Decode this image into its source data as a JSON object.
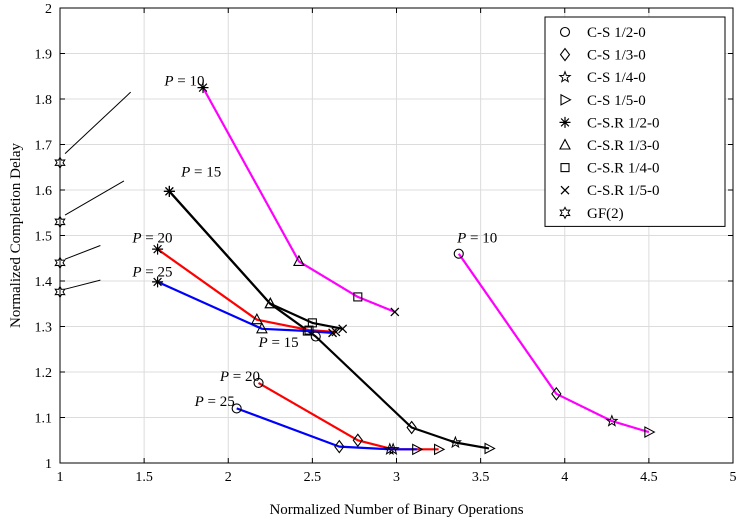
{
  "chart_data": {
    "type": "line",
    "title": "",
    "xlabel": "Normalized Number of Binary Operations",
    "ylabel": "Normalized Completion Delay",
    "xlim": [
      1,
      5
    ],
    "ylim": [
      1,
      2
    ],
    "xticks": [
      "1",
      "1.5",
      "2",
      "2.5",
      "3",
      "3.5",
      "4",
      "4.5",
      "5"
    ],
    "yticks": [
      "1",
      "1.1",
      "1.2",
      "1.3",
      "1.4",
      "1.5",
      "1.6",
      "1.7",
      "1.8",
      "1.9",
      "2"
    ],
    "grid": true,
    "legend_position": "top-right",
    "legend": [
      {
        "label": "C-S 1/2-0",
        "marker": "circle"
      },
      {
        "label": "C-S 1/3-0",
        "marker": "diamond"
      },
      {
        "label": "C-S 1/4-0",
        "marker": "star"
      },
      {
        "label": "C-S 1/5-0",
        "marker": "triangle-right"
      },
      {
        "label": "C-S.R 1/2-0",
        "marker": "asterisk"
      },
      {
        "label": "C-S.R 1/3-0",
        "marker": "triangle-up"
      },
      {
        "label": "C-S.R 1/4-0",
        "marker": "square"
      },
      {
        "label": "C-S.R 1/5-0",
        "marker": "x"
      },
      {
        "label": "GF(2)",
        "marker": "hexagram"
      }
    ],
    "series": [
      {
        "color": "#ff00ff",
        "points": [
          [
            3.37,
            1.46,
            "circle"
          ],
          [
            3.95,
            1.152,
            "diamond"
          ],
          [
            4.28,
            1.092,
            "star"
          ],
          [
            4.5,
            1.068,
            "triangle-right"
          ]
        ]
      },
      {
        "color": "#000000",
        "points": [
          [
            1.65,
            1.597,
            "asterisk"
          ],
          [
            2.25,
            1.35,
            "triangle-up"
          ],
          [
            2.52,
            1.278,
            "circle"
          ],
          [
            3.09,
            1.078,
            "diamond"
          ],
          [
            3.35,
            1.045,
            "star"
          ],
          [
            3.55,
            1.032,
            "triangle-right"
          ]
        ]
      },
      {
        "color": "#ff0000",
        "points": [
          [
            2.18,
            1.176,
            "circle"
          ],
          [
            2.77,
            1.05,
            "diamond"
          ],
          [
            2.98,
            1.03,
            "star"
          ],
          [
            3.25,
            1.03,
            "triangle-right"
          ]
        ]
      },
      {
        "color": "#0000ff",
        "points": [
          [
            2.05,
            1.12,
            "circle"
          ],
          [
            2.66,
            1.036,
            "diamond"
          ],
          [
            2.96,
            1.03,
            "star"
          ],
          [
            3.12,
            1.03,
            "triangle-right"
          ]
        ]
      },
      {
        "color": "#ff00ff",
        "points": [
          [
            1.85,
            1.825,
            "asterisk"
          ],
          [
            2.42,
            1.443,
            "triangle-up"
          ],
          [
            2.77,
            1.365,
            "square"
          ],
          [
            2.99,
            1.332,
            "x"
          ]
        ]
      },
      {
        "color": "#000000",
        "points": [
          [
            1.65,
            1.597,
            "asterisk"
          ],
          [
            2.25,
            1.35,
            "triangle-up"
          ],
          [
            2.5,
            1.308,
            "square"
          ],
          [
            2.68,
            1.295,
            "x"
          ]
        ]
      },
      {
        "color": "#ff0000",
        "points": [
          [
            1.58,
            1.47,
            "asterisk"
          ],
          [
            2.17,
            1.315,
            "triangle-up"
          ],
          [
            2.48,
            1.292,
            "square"
          ],
          [
            2.64,
            1.288,
            "x"
          ]
        ]
      },
      {
        "color": "#0000ff",
        "points": [
          [
            1.58,
            1.398,
            "asterisk"
          ],
          [
            2.2,
            1.295,
            "triangle-up"
          ],
          [
            2.47,
            1.29,
            "square"
          ],
          [
            2.62,
            1.286,
            "x"
          ]
        ]
      }
    ],
    "gf2_points": [
      [
        1.0,
        1.66
      ],
      [
        1.0,
        1.53
      ],
      [
        1.0,
        1.44
      ],
      [
        1.0,
        1.376
      ]
    ],
    "annotations": [
      {
        "p": "P",
        "value": "= 10",
        "x": 3.36,
        "y": 1.485
      },
      {
        "p": "P",
        "value": "= 15",
        "x": 2.18,
        "y": 1.255
      },
      {
        "p": "P",
        "value": "= 20",
        "x": 1.95,
        "y": 1.18
      },
      {
        "p": "P",
        "value": "= 25",
        "x": 1.8,
        "y": 1.125
      },
      {
        "p": "P",
        "value": "= 10",
        "x": 1.62,
        "y": 1.83
      },
      {
        "p": "P",
        "value": "= 15",
        "x": 1.72,
        "y": 1.63
      },
      {
        "p": "P",
        "value": "= 20",
        "x": 1.43,
        "y": 1.485
      },
      {
        "p": "P",
        "value": "= 25",
        "x": 1.43,
        "y": 1.41
      }
    ],
    "leaders": [
      {
        "from": [
          1.03,
          1.68
        ],
        "to": [
          1.42,
          1.815
        ]
      },
      {
        "from": [
          1.03,
          1.545
        ],
        "to": [
          1.38,
          1.62
        ]
      },
      {
        "from": [
          1.03,
          1.448
        ],
        "to": [
          1.24,
          1.478
        ]
      },
      {
        "from": [
          1.03,
          1.382
        ],
        "to": [
          1.24,
          1.402
        ]
      }
    ]
  }
}
